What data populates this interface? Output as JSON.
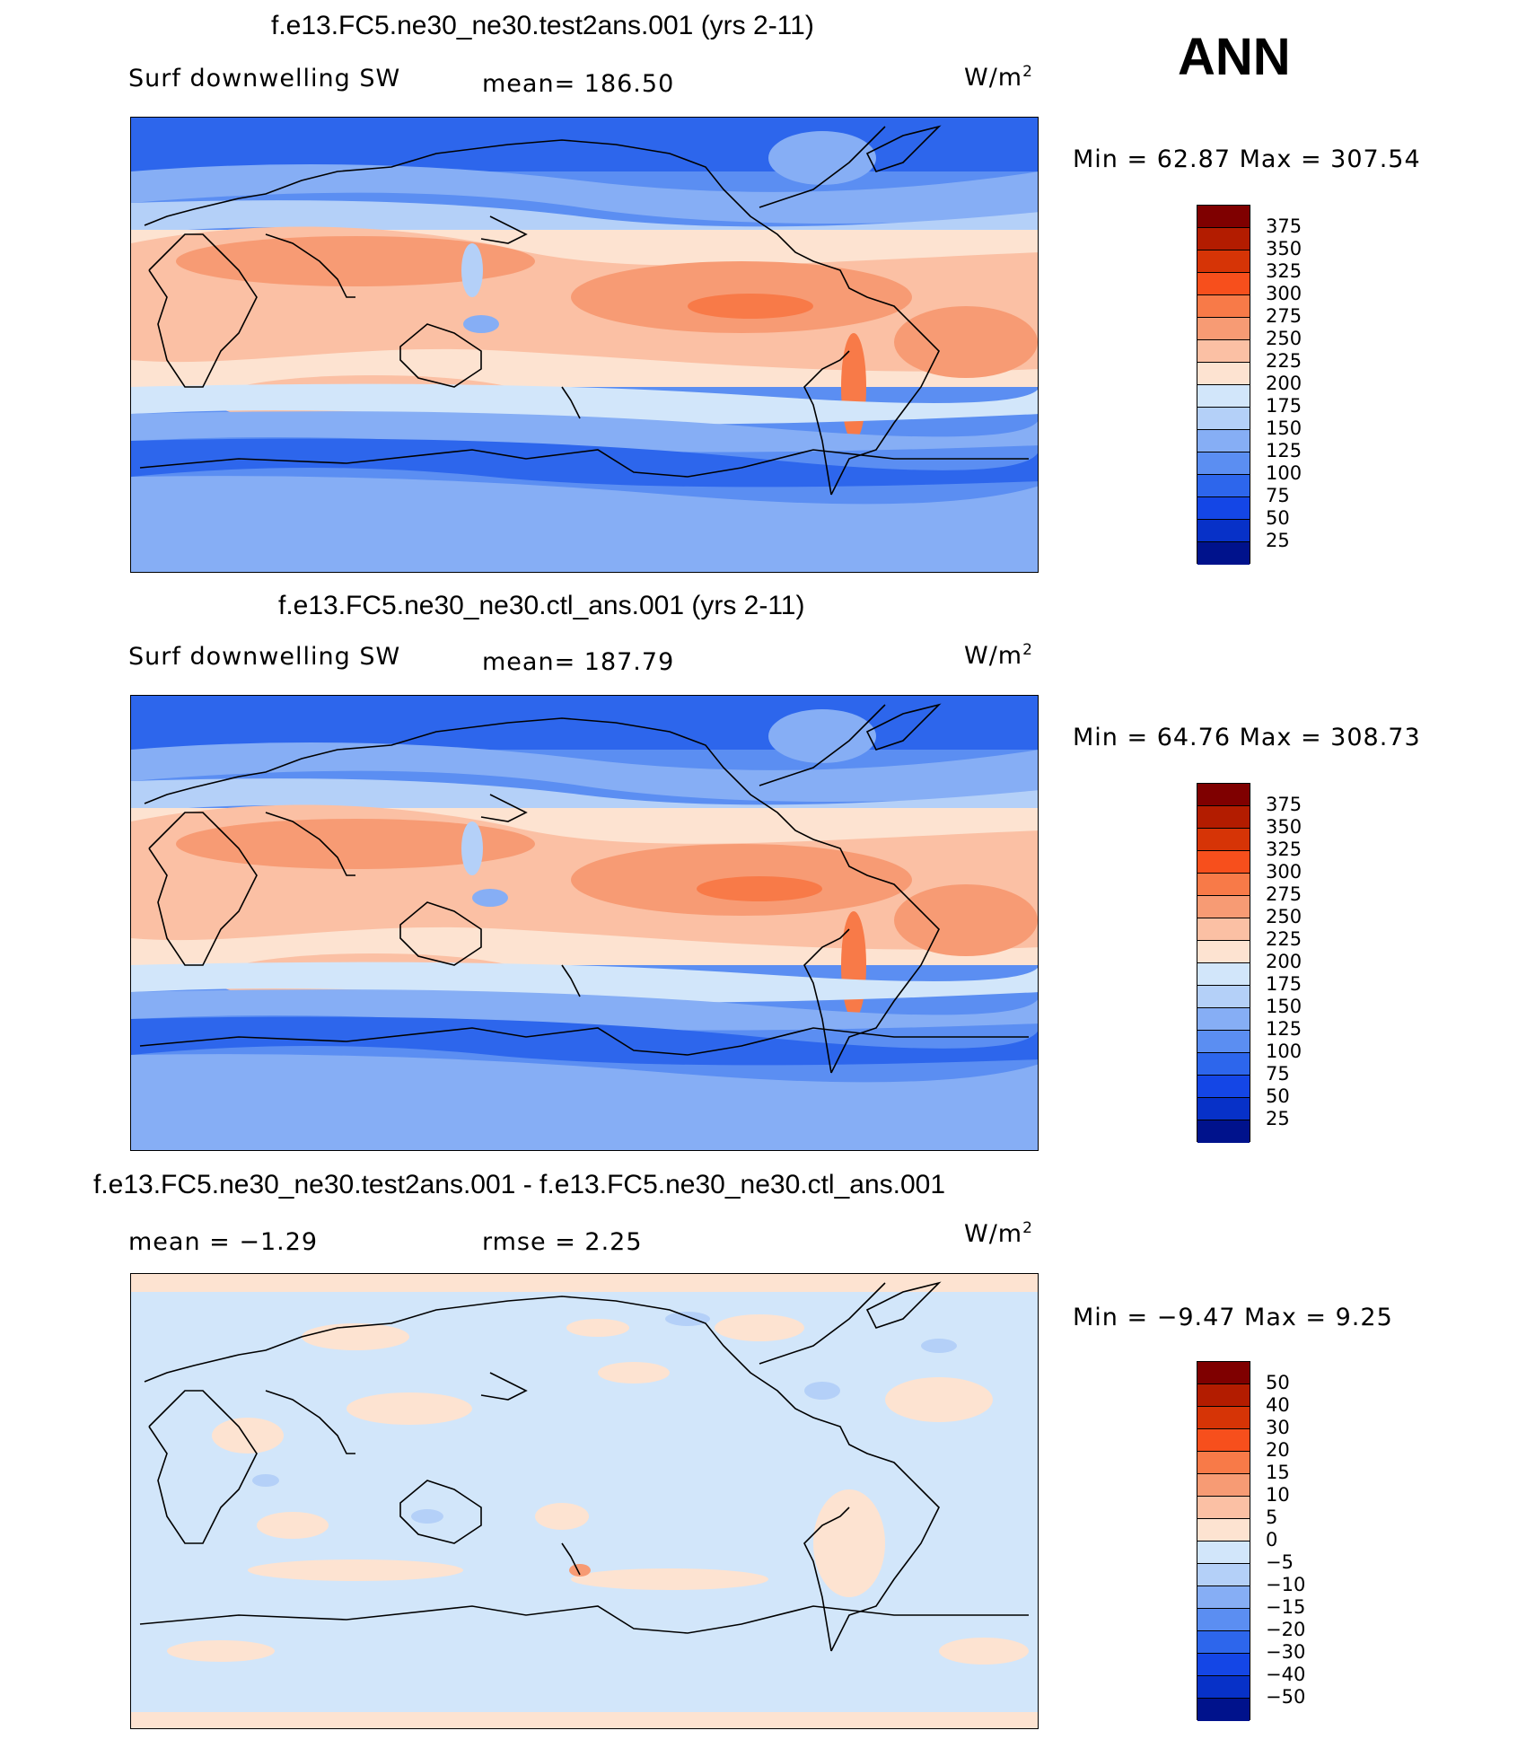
{
  "season": "ANN",
  "panels": [
    {
      "title": "f.e13.FC5.ne30_ne30.test2ans.001 (yrs 2-11)",
      "left_label": "Surf  downwelling  SW",
      "mid_label": "mean=  186.50",
      "unit": "W/m",
      "unit_sup": "2",
      "minmax": "Min  =    62.87  Max  =  307.54",
      "kind": "field"
    },
    {
      "title": "f.e13.FC5.ne30_ne30.ctl_ans.001 (yrs 2-11)",
      "left_label": "Surf  downwelling  SW",
      "mid_label": "mean=  187.79",
      "unit": "W/m",
      "unit_sup": "2",
      "minmax": "Min  =    64.76  Max  =  308.73",
      "kind": "field"
    },
    {
      "title": "f.e13.FC5.ne30_ne30.test2ans.001 - f.e13.FC5.ne30_ne30.ctl_ans.001",
      "left_label": "mean  =    −1.29",
      "mid_label": "rmse  =     2.25",
      "unit": "W/m",
      "unit_sup": "2",
      "minmax": "Min  =    −9.47  Max  =      9.25",
      "kind": "diff"
    }
  ],
  "colorbars": {
    "field_levels": [
      "375",
      "350",
      "325",
      "300",
      "275",
      "250",
      "225",
      "200",
      "175",
      "150",
      "125",
      "100",
      "75",
      "50",
      "25"
    ],
    "diff_levels": [
      "50",
      "40",
      "30",
      "20",
      "15",
      "10",
      "5",
      "0",
      "−5",
      "−10",
      "−15",
      "−20",
      "−30",
      "−40",
      "−50"
    ],
    "colors": [
      "#7f0000",
      "#b31c00",
      "#d63406",
      "#f74f1c",
      "#f87a48",
      "#f79b74",
      "#fbc0a4",
      "#fde3d1",
      "#ffffff",
      "#d2e6fa",
      "#b4d0f8",
      "#86aef5",
      "#5b8ef2",
      "#2d66ec",
      "#1446e6",
      "#0731c8",
      "#00128c"
    ]
  }
}
